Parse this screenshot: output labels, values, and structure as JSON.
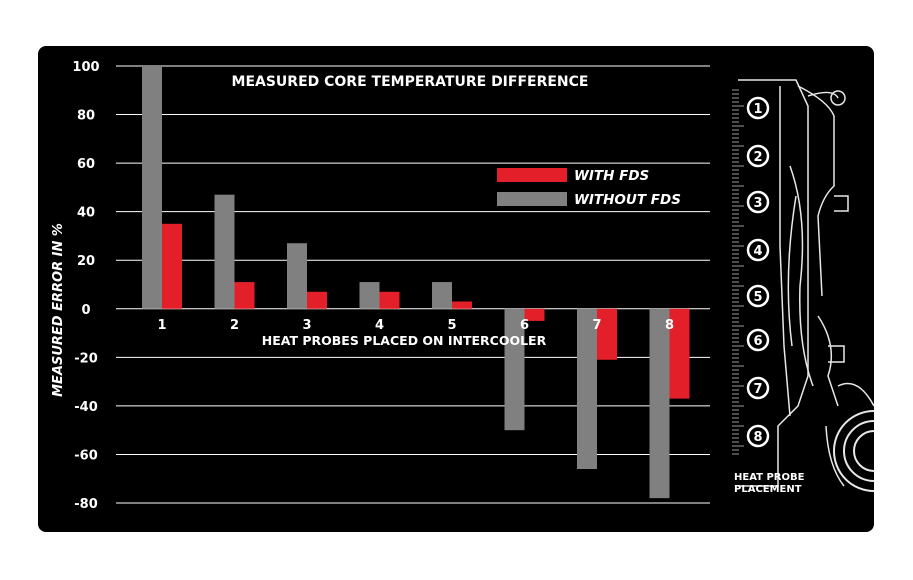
{
  "chart_data": {
    "type": "bar",
    "title": "MEASURED CORE TEMPERATURE DIFFERENCE",
    "xlabel": "HEAT PROBES PLACED ON INTERCOOLER",
    "ylabel": "MEASURED  ERROR IN %",
    "categories": [
      "1",
      "2",
      "3",
      "4",
      "5",
      "6",
      "7",
      "8"
    ],
    "ylim": [
      -80,
      100
    ],
    "yticks": [
      "100",
      "80",
      "60",
      "40",
      "20",
      "0",
      "-20",
      "-40",
      "-60",
      "-80"
    ],
    "grid": true,
    "legend_position": "top-right",
    "series": [
      {
        "name": "WITHOUT FDS",
        "color": "#808080",
        "values": [
          100,
          47,
          27,
          11,
          11,
          -50,
          -66,
          -78
        ]
      },
      {
        "name": "WITH FDS",
        "color": "#e3202a",
        "values": [
          35,
          11,
          7,
          7,
          3,
          -5,
          -21,
          -37
        ]
      }
    ]
  },
  "sidebar": {
    "markers": [
      "1",
      "2",
      "3",
      "4",
      "5",
      "6",
      "7",
      "8"
    ],
    "caption_line1": "HEAT PROBE",
    "caption_line2": "PLACEMENT"
  }
}
